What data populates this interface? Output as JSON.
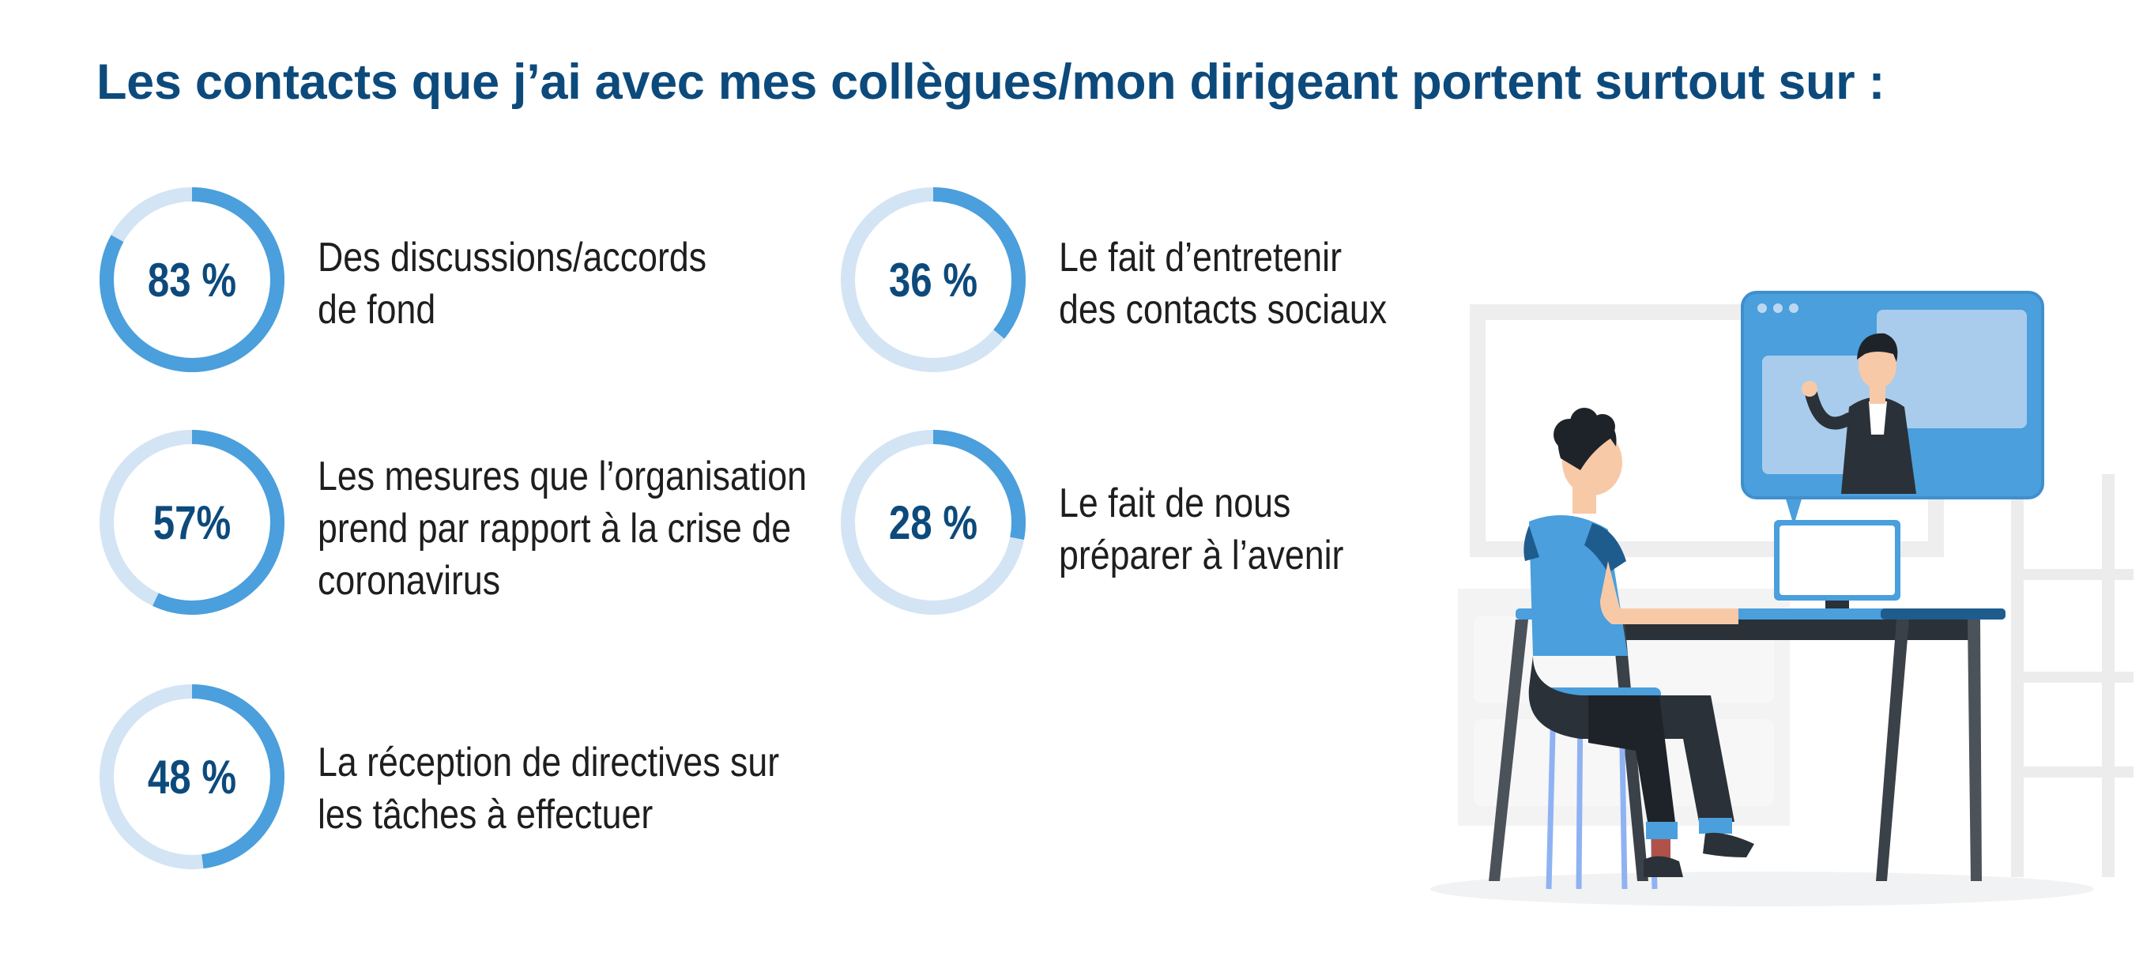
{
  "colors": {
    "title": "#0d4a7c",
    "value_text": "#0d4a7c",
    "ring_fill": "#4a9fdc",
    "ring_track": "#d3e4f4",
    "illustration_accent": "#4a9fdc",
    "illustration_dark": "#2a3138"
  },
  "title": "Les contacts que j’ai avec mes collègues/mon dirigeant portent surtout sur :",
  "chart_data": {
    "type": "donut",
    "title": "Les contacts que j’ai avec mes collègues/mon dirigeant portent surtout sur :",
    "unit": "%",
    "items": [
      {
        "label": "Des discussions/accords\nde fond",
        "value": 83,
        "display": "83 %"
      },
      {
        "label": "Les mesures que l’organisation\nprend par rapport à la crise de\ncoronavirus",
        "value": 57,
        "display": "57%"
      },
      {
        "label": "La réception de directives sur\nles tâches à effectuer",
        "value": 48,
        "display": "48 %"
      },
      {
        "label": "Le fait d’entretenir\ndes contacts sociaux",
        "value": 36,
        "display": "36 %"
      },
      {
        "label": "Le fait de nous\npréparer à l’avenir",
        "value": 28,
        "display": "28 %"
      }
    ]
  },
  "illustration": {
    "icon": "video-call-illustration"
  }
}
